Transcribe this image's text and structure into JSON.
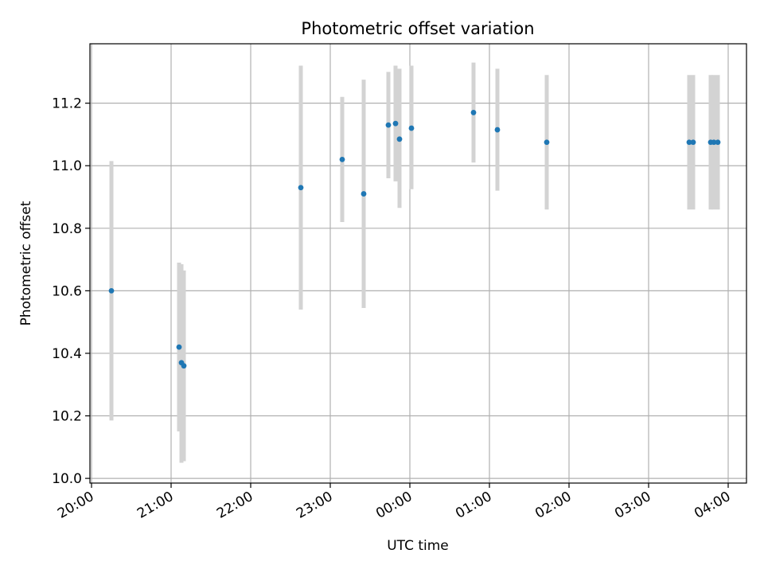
{
  "chart_data": {
    "type": "scatter",
    "title": "Photometric offset variation",
    "xlabel": "UTC time",
    "ylabel": "Photometric offset",
    "x_unit": "UTC hours (values past 24 roll into next day)",
    "xlim": [
      19.98,
      28.23
    ],
    "ylim": [
      9.985,
      11.39
    ],
    "x_ticks": [
      {
        "value": 20,
        "label": "20:00"
      },
      {
        "value": 21,
        "label": "21:00"
      },
      {
        "value": 22,
        "label": "22:00"
      },
      {
        "value": 23,
        "label": "23:00"
      },
      {
        "value": 24,
        "label": "00:00"
      },
      {
        "value": 25,
        "label": "01:00"
      },
      {
        "value": 26,
        "label": "02:00"
      },
      {
        "value": 27,
        "label": "03:00"
      },
      {
        "value": 28,
        "label": "04:00"
      }
    ],
    "y_ticks": [
      {
        "value": 10.0,
        "label": "10.0"
      },
      {
        "value": 10.2,
        "label": "10.2"
      },
      {
        "value": 10.4,
        "label": "10.4"
      },
      {
        "value": 10.6,
        "label": "10.6"
      },
      {
        "value": 10.8,
        "label": "10.8"
      },
      {
        "value": 11.0,
        "label": "11.0"
      },
      {
        "value": 11.2,
        "label": "11.2"
      }
    ],
    "grid": true,
    "colors": {
      "points": "#1f77b4",
      "errorbars": "#d3d3d3",
      "grid": "#b0b0b0",
      "axes": "#000000"
    },
    "points": [
      {
        "x": 20.25,
        "y": 10.6,
        "ylow": 10.185,
        "yhigh": 11.015
      },
      {
        "x": 21.1,
        "y": 10.42,
        "ylow": 10.15,
        "yhigh": 10.69
      },
      {
        "x": 21.13,
        "y": 10.37,
        "ylow": 10.05,
        "yhigh": 10.685
      },
      {
        "x": 21.16,
        "y": 10.36,
        "ylow": 10.055,
        "yhigh": 10.665
      },
      {
        "x": 22.63,
        "y": 10.93,
        "ylow": 10.54,
        "yhigh": 11.32
      },
      {
        "x": 23.15,
        "y": 11.02,
        "ylow": 10.82,
        "yhigh": 11.22
      },
      {
        "x": 23.42,
        "y": 10.91,
        "ylow": 10.545,
        "yhigh": 11.275
      },
      {
        "x": 23.73,
        "y": 11.13,
        "ylow": 10.96,
        "yhigh": 11.3
      },
      {
        "x": 23.82,
        "y": 11.135,
        "ylow": 10.95,
        "yhigh": 11.32
      },
      {
        "x": 23.87,
        "y": 11.085,
        "ylow": 10.865,
        "yhigh": 11.31
      },
      {
        "x": 24.02,
        "y": 11.12,
        "ylow": 10.925,
        "yhigh": 11.32
      },
      {
        "x": 24.8,
        "y": 11.17,
        "ylow": 11.01,
        "yhigh": 11.33
      },
      {
        "x": 25.1,
        "y": 11.115,
        "ylow": 10.92,
        "yhigh": 11.31
      },
      {
        "x": 25.72,
        "y": 11.075,
        "ylow": 10.86,
        "yhigh": 11.29
      },
      {
        "x": 27.51,
        "y": 11.075,
        "ylow": 10.86,
        "yhigh": 11.29
      },
      {
        "x": 27.56,
        "y": 11.075,
        "ylow": 10.86,
        "yhigh": 11.29
      },
      {
        "x": 27.78,
        "y": 11.075,
        "ylow": 10.86,
        "yhigh": 11.29
      },
      {
        "x": 27.82,
        "y": 11.075,
        "ylow": 10.86,
        "yhigh": 11.29
      },
      {
        "x": 27.87,
        "y": 11.075,
        "ylow": 10.86,
        "yhigh": 11.29
      }
    ]
  }
}
